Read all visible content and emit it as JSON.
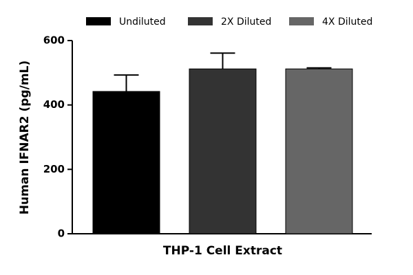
{
  "chart_data": {
    "type": "bar",
    "categories": [
      "THP-1 Cell Extract"
    ],
    "y_label": "Human IFNAR2 (pg/mL)",
    "series": [
      {
        "name": "Undiluted",
        "color": "#000000",
        "values": [
          442
        ],
        "errors": [
          51
        ]
      },
      {
        "name": "2X Diluted",
        "color": "#333333",
        "values": [
          512
        ],
        "errors": [
          49
        ]
      },
      {
        "name": "4X Diluted",
        "color": "#666666",
        "values": [
          512
        ],
        "errors": [
          3
        ]
      }
    ],
    "ylim": [
      0,
      600
    ],
    "yticks": [
      0,
      200,
      400,
      600
    ],
    "legend": "top"
  }
}
